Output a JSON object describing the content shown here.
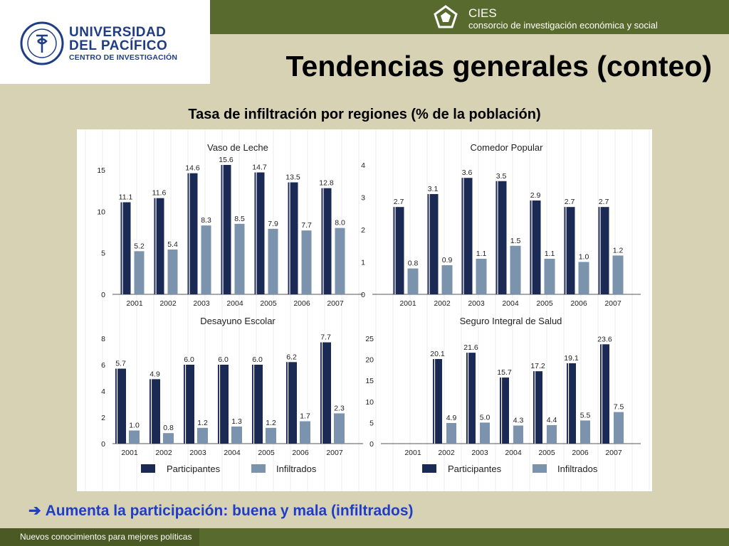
{
  "header": {
    "logo": {
      "line1": "UNIVERSIDAD",
      "line2": "DEL PACÍFICO",
      "line3": "CENTRO DE INVESTIGACIÓN",
      "seal_text": "UNIVERSIDAD DEL PACÍFICO · LIMA - PERÚ"
    },
    "cies": {
      "name": "CIES",
      "subtitle": "consorcio de investigación económica y social"
    }
  },
  "slide_title": "Tendencias generales (conteo)",
  "chart_title": "Tasa de infiltración por regiones (% de la población)",
  "colors": {
    "participantes": "#1b2a55",
    "infiltrados": "#7b93ad",
    "background": "#d8d2b4",
    "bar_olive": "#586a2e",
    "note_blue": "#1e3ec8"
  },
  "legend": {
    "series1": "Participantes",
    "series2": "Infiltrados"
  },
  "note": {
    "arrow_icon": "➔",
    "text": "Aumenta la participación: buena y mala (infiltrados)"
  },
  "footer": {
    "text": "Nuevos conocimientos para mejores políticas"
  },
  "chart_data": [
    {
      "type": "bar",
      "title": "Vaso de Leche",
      "categories": [
        "2001",
        "2002",
        "2003",
        "2004",
        "2005",
        "2006",
        "2007"
      ],
      "series": [
        {
          "name": "Participantes",
          "values": [
            11.1,
            11.6,
            14.6,
            15.6,
            14.7,
            13.5,
            12.8
          ]
        },
        {
          "name": "Infiltrados",
          "values": [
            5.2,
            5.4,
            8.3,
            8.5,
            7.9,
            7.7,
            8.0
          ]
        }
      ],
      "ylim": [
        0,
        15
      ],
      "yticks": [
        0,
        5,
        10,
        15
      ]
    },
    {
      "type": "bar",
      "title": "Comedor Popular",
      "categories": [
        "2001",
        "2002",
        "2003",
        "2004",
        "2005",
        "2006",
        "2007"
      ],
      "series": [
        {
          "name": "Participantes",
          "values": [
            2.7,
            3.1,
            3.6,
            3.5,
            2.9,
            2.7,
            2.7
          ]
        },
        {
          "name": "Infiltrados",
          "values": [
            0.8,
            0.9,
            1.1,
            1.5,
            1.1,
            1.0,
            1.2
          ]
        }
      ],
      "ylim": [
        0,
        4
      ],
      "yticks": [
        0,
        1,
        2,
        3,
        4
      ]
    },
    {
      "type": "bar",
      "title": "Desayuno Escolar",
      "categories": [
        "2001",
        "2002",
        "2003",
        "2004",
        "2005",
        "2006",
        "2007"
      ],
      "series": [
        {
          "name": "Participantes",
          "values": [
            5.7,
            4.9,
            6.0,
            6.0,
            6.0,
            6.2,
            7.7
          ]
        },
        {
          "name": "Infiltrados",
          "values": [
            1.0,
            0.8,
            1.2,
            1.3,
            1.2,
            1.7,
            2.3
          ]
        }
      ],
      "ylim": [
        0,
        8
      ],
      "yticks": [
        0,
        2,
        4,
        6,
        8
      ],
      "legend": true
    },
    {
      "type": "bar",
      "title": "Seguro Integral de Salud",
      "categories": [
        "2001",
        "2002",
        "2003",
        "2004",
        "2005",
        "2006",
        "2007"
      ],
      "series": [
        {
          "name": "Participantes",
          "values": [
            null,
            20.1,
            21.6,
            15.7,
            17.2,
            19.1,
            23.6
          ]
        },
        {
          "name": "Infiltrados",
          "values": [
            null,
            4.9,
            5.0,
            4.3,
            4.4,
            5.5,
            7.5
          ]
        }
      ],
      "ylim": [
        0,
        25
      ],
      "yticks": [
        0,
        5,
        10,
        15,
        20,
        25
      ],
      "legend": true
    }
  ]
}
